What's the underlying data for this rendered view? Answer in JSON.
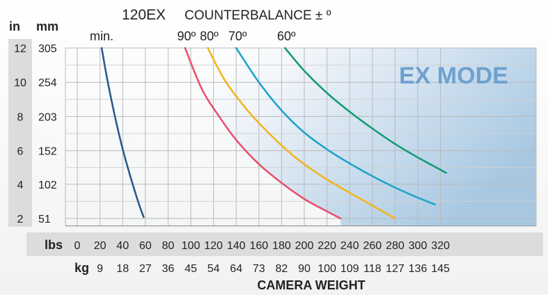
{
  "chart_data": {
    "type": "line",
    "title": "120EX",
    "subtitle": "COUNTERBALANCE ± º",
    "xlabel": "CAMERA WEIGHT",
    "y_unit_in": "in",
    "y_unit_mm": "mm",
    "x_unit_lbs": "lbs",
    "x_unit_kg": "kg",
    "mode_label": "EX MODE",
    "x_ticks_lbs": [
      "0",
      "20",
      "40",
      "60",
      "80",
      "100",
      "120",
      "140",
      "160",
      "180",
      "200",
      "220",
      "240",
      "260",
      "280",
      "300",
      "320"
    ],
    "x_ticks_kg": [
      "9",
      "18",
      "27",
      "36",
      "45",
      "54",
      "64",
      "73",
      "82",
      "90",
      "100",
      "109",
      "118",
      "127",
      "136",
      "145"
    ],
    "y_ticks_in": [
      "12",
      "10",
      "8",
      "6",
      "4",
      "2"
    ],
    "y_ticks_mm": [
      "305",
      "254",
      "203",
      "152",
      "102",
      "51"
    ],
    "x_range_lbs": [
      0,
      325
    ],
    "y_range_mm": [
      40,
      305
    ],
    "grid": true,
    "series": [
      {
        "name": "min.",
        "color": "#2b5a8e",
        "x": [
          21.5,
          26,
          31,
          36,
          41,
          46,
          51,
          55,
          58.5
        ],
        "y": [
          305,
          262,
          220,
          182,
          148,
          118,
          90,
          69,
          53
        ]
      },
      {
        "name": "90º",
        "color": "#e8506e",
        "x": [
          95,
          110,
          125,
          140,
          160,
          180,
          200,
          215,
          232
        ],
        "y": [
          305,
          243,
          203,
          168,
          132,
          104,
          80,
          66,
          51
        ]
      },
      {
        "name": "80º",
        "color": "#f2b51e",
        "x": [
          115,
          130,
          150,
          170,
          190,
          210,
          230,
          255,
          280
        ],
        "y": [
          305,
          257,
          212,
          176,
          145,
          120,
          99,
          75,
          51
        ]
      },
      {
        "name": "70º",
        "color": "#1ea3c9",
        "x": [
          140,
          160,
          180,
          200,
          220,
          240,
          260,
          280,
          300,
          315
        ],
        "y": [
          305,
          254,
          212,
          179,
          154,
          133,
          114,
          97,
          82,
          72
        ]
      },
      {
        "name": "60º",
        "color": "#159a73",
        "x": [
          183,
          200,
          220,
          240,
          260,
          280,
          300,
          325
        ],
        "y": [
          305,
          271,
          238,
          210,
          185,
          162,
          142,
          119
        ]
      }
    ]
  }
}
